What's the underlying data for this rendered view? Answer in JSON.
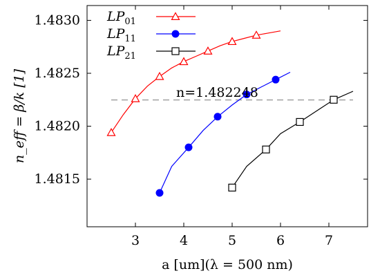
{
  "chart_data": {
    "type": "line",
    "xlabel": "a [um](λ = 500 nm)",
    "ylabel": "n_eff = β/k [1]",
    "xlim": [
      2.0,
      7.8
    ],
    "ylim": [
      1.48105,
      1.48314
    ],
    "xticks": [
      "3",
      "4",
      "5",
      "6",
      "7"
    ],
    "xtick_values": [
      3,
      4,
      5,
      6,
      7
    ],
    "yticks": [
      "1.4815",
      "1.4820",
      "1.4825",
      "1.4830"
    ],
    "ytick_values": [
      1.4815,
      1.482,
      1.4825,
      1.483
    ],
    "grid": false,
    "legend_position": "top-left",
    "reference_line": {
      "y": 1.482248,
      "label": "n=1.482248",
      "x_range": [
        2.5,
        7.5
      ],
      "style": "dashed",
      "color": "#999999"
    },
    "series": [
      {
        "name": "LP01",
        "legend_main": "LP",
        "legend_sub": "01",
        "color": "#ff0000",
        "marker": "triangle-open",
        "curve": [
          [
            2.5,
            1.48194
          ],
          [
            2.75,
            1.48211
          ],
          [
            3.0,
            1.48226
          ],
          [
            3.25,
            1.48238
          ],
          [
            3.5,
            1.48247
          ],
          [
            3.75,
            1.48255
          ],
          [
            4.0,
            1.48261
          ],
          [
            4.25,
            1.48266
          ],
          [
            4.5,
            1.48271
          ],
          [
            4.75,
            1.48276
          ],
          [
            5.0,
            1.4828
          ],
          [
            5.25,
            1.48283
          ],
          [
            5.5,
            1.48286
          ],
          [
            5.75,
            1.48288
          ],
          [
            6.0,
            1.4829
          ]
        ],
        "markers": [
          [
            2.5,
            1.48194
          ],
          [
            3.0,
            1.48226
          ],
          [
            3.5,
            1.48247
          ],
          [
            4.0,
            1.48261
          ],
          [
            4.5,
            1.48271
          ],
          [
            5.0,
            1.4828
          ],
          [
            5.5,
            1.48286
          ]
        ]
      },
      {
        "name": "LP11",
        "legend_main": "LP",
        "legend_sub": "11",
        "color": "#0000ff",
        "marker": "circle-filled",
        "curve": [
          [
            3.5,
            1.48137
          ],
          [
            3.75,
            1.48162
          ],
          [
            4.1,
            1.4818
          ],
          [
            4.4,
            1.48196
          ],
          [
            4.7,
            1.48209
          ],
          [
            5.0,
            1.4822
          ],
          [
            5.3,
            1.4823
          ],
          [
            5.6,
            1.48237
          ],
          [
            5.9,
            1.48244
          ],
          [
            6.2,
            1.48251
          ]
        ],
        "markers": [
          [
            3.5,
            1.48137
          ],
          [
            4.1,
            1.4818
          ],
          [
            4.7,
            1.48209
          ],
          [
            5.3,
            1.4823
          ],
          [
            5.9,
            1.48244
          ]
        ]
      },
      {
        "name": "LP21",
        "legend_main": "LP",
        "legend_sub": "21",
        "color": "#000000",
        "marker": "square-open",
        "curve": [
          [
            5.0,
            1.48142
          ],
          [
            5.3,
            1.48162
          ],
          [
            5.7,
            1.48178
          ],
          [
            6.0,
            1.48193
          ],
          [
            6.4,
            1.48204
          ],
          [
            6.8,
            1.48216
          ],
          [
            7.1,
            1.48225
          ],
          [
            7.5,
            1.48233
          ]
        ],
        "markers": [
          [
            5.0,
            1.48142
          ],
          [
            5.7,
            1.48178
          ],
          [
            6.4,
            1.48204
          ],
          [
            7.1,
            1.48225
          ]
        ]
      }
    ]
  }
}
